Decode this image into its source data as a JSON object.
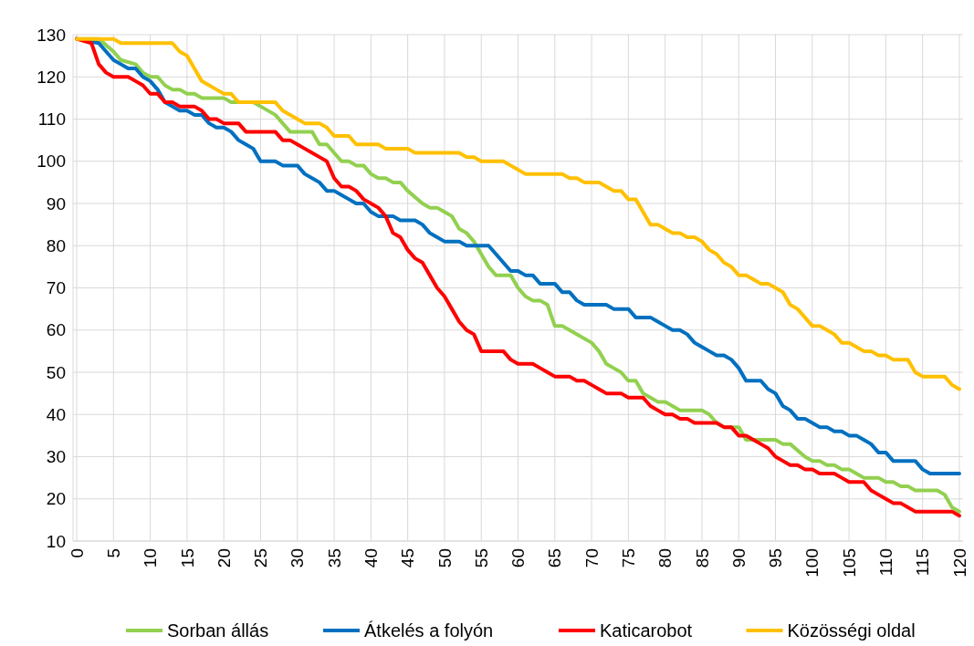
{
  "chart_data": {
    "type": "line",
    "xlim": [
      -0.5,
      120.5
    ],
    "xticks": [
      0,
      5,
      10,
      15,
      20,
      25,
      30,
      35,
      40,
      45,
      50,
      55,
      60,
      65,
      70,
      75,
      80,
      85,
      90,
      95,
      100,
      105,
      110,
      115,
      120
    ],
    "ylim": [
      10,
      130
    ],
    "yticks": [
      10,
      20,
      30,
      40,
      50,
      60,
      70,
      80,
      90,
      100,
      110,
      120,
      130
    ],
    "grid": true,
    "legend": "bottom",
    "line_style": "solid",
    "marker": "none",
    "series": [
      {
        "name": "Sorban állás",
        "color": "#92d050",
        "x": [
          0,
          3,
          5,
          6,
          8,
          9,
          10,
          11,
          12,
          13,
          14,
          15,
          16,
          17,
          20,
          21,
          24,
          25,
          27,
          29,
          32,
          33,
          34,
          35,
          36,
          37,
          38,
          39,
          40,
          41,
          42,
          43,
          44,
          45,
          47,
          48,
          49,
          50,
          51,
          52,
          53,
          54,
          55,
          56,
          57,
          59,
          60,
          61,
          62,
          63,
          64,
          65,
          66,
          67,
          70,
          71,
          72,
          73,
          74,
          75,
          76,
          77,
          78,
          79,
          80,
          81,
          82,
          85,
          86,
          87,
          88,
          90,
          91,
          95,
          96,
          97,
          99,
          100,
          101,
          102,
          103,
          104,
          105,
          106,
          107,
          109,
          110,
          111,
          112,
          113,
          114,
          117,
          118,
          119,
          120
        ],
        "values": [
          129,
          129,
          126,
          124,
          123,
          121,
          120,
          120,
          118,
          117,
          117,
          116,
          116,
          115,
          115,
          114,
          114,
          113,
          111,
          107,
          107,
          104,
          104,
          102,
          100,
          100,
          99,
          99,
          97,
          96,
          96,
          95,
          95,
          93,
          90,
          89,
          89,
          88,
          87,
          84,
          83,
          81,
          78,
          75,
          73,
          73,
          70,
          68,
          67,
          67,
          66,
          61,
          61,
          60,
          57,
          55,
          52,
          51,
          50,
          48,
          48,
          45,
          44,
          43,
          43,
          42,
          41,
          41,
          40,
          38,
          37,
          37,
          34,
          34,
          33,
          33,
          30,
          29,
          29,
          28,
          28,
          27,
          27,
          26,
          25,
          25,
          24,
          24,
          23,
          23,
          22,
          22,
          21,
          18,
          17
        ]
      },
      {
        "name": "Átkelés a folyón",
        "color": "#0070c0",
        "x": [
          0,
          3,
          4,
          5,
          6,
          7,
          8,
          9,
          10,
          11,
          12,
          13,
          14,
          15,
          16,
          17,
          18,
          19,
          20,
          21,
          22,
          23,
          24,
          25,
          27,
          28,
          30,
          31,
          32,
          33,
          34,
          35,
          36,
          37,
          38,
          39,
          40,
          41,
          43,
          44,
          46,
          47,
          48,
          49,
          50,
          52,
          53,
          56,
          57,
          58,
          59,
          60,
          61,
          62,
          63,
          65,
          66,
          67,
          68,
          69,
          72,
          73,
          75,
          76,
          78,
          79,
          80,
          81,
          82,
          83,
          84,
          85,
          86,
          87,
          88,
          89,
          90,
          91,
          93,
          94,
          95,
          96,
          97,
          98,
          99,
          100,
          101,
          102,
          103,
          104,
          105,
          106,
          107,
          108,
          109,
          110,
          111,
          114,
          115,
          116,
          120
        ],
        "values": [
          129,
          128,
          126,
          124,
          123,
          122,
          122,
          120,
          119,
          117,
          114,
          113,
          112,
          112,
          111,
          111,
          109,
          108,
          108,
          107,
          105,
          104,
          103,
          100,
          100,
          99,
          99,
          97,
          96,
          95,
          93,
          93,
          92,
          91,
          90,
          90,
          88,
          87,
          87,
          86,
          86,
          85,
          83,
          82,
          81,
          81,
          80,
          80,
          78,
          76,
          74,
          74,
          73,
          73,
          71,
          71,
          69,
          69,
          67,
          66,
          66,
          65,
          65,
          63,
          63,
          62,
          61,
          60,
          60,
          59,
          57,
          56,
          55,
          54,
          54,
          53,
          51,
          48,
          48,
          46,
          45,
          42,
          41,
          39,
          39,
          38,
          37,
          37,
          36,
          36,
          35,
          35,
          34,
          33,
          31,
          31,
          29,
          29,
          27,
          26,
          26
        ]
      },
      {
        "name": "Katicarobot",
        "color": "#ff0000",
        "x": [
          0,
          2,
          3,
          4,
          5,
          7,
          8,
          9,
          10,
          11,
          12,
          13,
          14,
          16,
          17,
          18,
          19,
          20,
          22,
          23,
          27,
          28,
          29,
          30,
          31,
          32,
          33,
          34,
          35,
          36,
          37,
          38,
          39,
          40,
          41,
          42,
          43,
          44,
          45,
          46,
          47,
          48,
          49,
          50,
          51,
          52,
          53,
          54,
          55,
          58,
          59,
          60,
          62,
          63,
          64,
          65,
          67,
          68,
          69,
          70,
          71,
          72,
          74,
          75,
          77,
          78,
          79,
          80,
          81,
          82,
          83,
          84,
          87,
          88,
          89,
          90,
          91,
          92,
          93,
          94,
          95,
          96,
          97,
          98,
          99,
          100,
          101,
          103,
          104,
          105,
          107,
          108,
          109,
          110,
          111,
          112,
          113,
          114,
          119,
          120
        ],
        "values": [
          129,
          128,
          123,
          121,
          120,
          120,
          119,
          118,
          116,
          116,
          114,
          114,
          113,
          113,
          112,
          110,
          110,
          109,
          109,
          107,
          107,
          105,
          105,
          104,
          103,
          102,
          101,
          100,
          96,
          94,
          94,
          93,
          91,
          90,
          89,
          87,
          83,
          82,
          79,
          77,
          76,
          73,
          70,
          68,
          65,
          62,
          60,
          59,
          55,
          55,
          53,
          52,
          52,
          51,
          50,
          49,
          49,
          48,
          48,
          47,
          46,
          45,
          45,
          44,
          44,
          42,
          41,
          40,
          40,
          39,
          39,
          38,
          38,
          37,
          37,
          35,
          35,
          34,
          33,
          32,
          30,
          29,
          28,
          28,
          27,
          27,
          26,
          26,
          25,
          24,
          24,
          22,
          21,
          20,
          19,
          19,
          18,
          17,
          17,
          16
        ]
      },
      {
        "name": "Közösségi oldal",
        "color": "#ffc000",
        "x": [
          0,
          5,
          6,
          13,
          14,
          15,
          16,
          17,
          18,
          19,
          20,
          21,
          22,
          27,
          28,
          30,
          31,
          33,
          34,
          35,
          37,
          38,
          41,
          42,
          45,
          46,
          52,
          53,
          54,
          55,
          58,
          59,
          60,
          61,
          66,
          67,
          68,
          69,
          71,
          72,
          73,
          74,
          75,
          76,
          77,
          78,
          79,
          80,
          81,
          82,
          83,
          84,
          85,
          86,
          87,
          88,
          89,
          90,
          91,
          92,
          93,
          94,
          95,
          96,
          97,
          98,
          99,
          100,
          101,
          102,
          103,
          104,
          105,
          106,
          107,
          108,
          109,
          110,
          111,
          113,
          114,
          115,
          118,
          119,
          120
        ],
        "values": [
          129,
          129,
          128,
          128,
          126,
          125,
          122,
          119,
          118,
          117,
          116,
          116,
          114,
          114,
          112,
          110,
          109,
          109,
          108,
          106,
          106,
          104,
          104,
          103,
          103,
          102,
          102,
          101,
          101,
          100,
          100,
          99,
          98,
          97,
          97,
          96,
          96,
          95,
          95,
          94,
          93,
          93,
          91,
          91,
          88,
          85,
          85,
          84,
          83,
          83,
          82,
          82,
          81,
          79,
          78,
          76,
          75,
          73,
          73,
          72,
          71,
          71,
          70,
          69,
          66,
          65,
          63,
          61,
          61,
          60,
          59,
          57,
          57,
          56,
          55,
          55,
          54,
          54,
          53,
          53,
          50,
          49,
          49,
          47,
          46
        ]
      }
    ]
  }
}
